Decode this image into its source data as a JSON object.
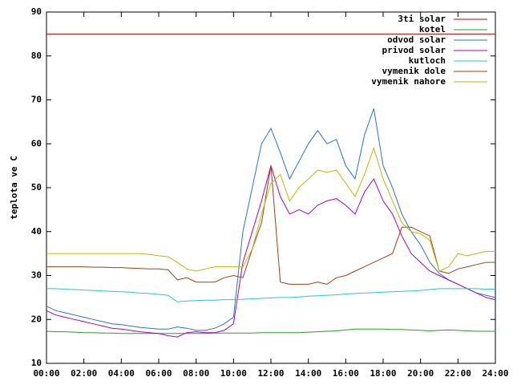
{
  "chart_data": {
    "type": "line",
    "ylabel": "teplota ve C",
    "x": [
      0,
      0.5,
      1,
      1.5,
      2,
      2.5,
      3,
      3.5,
      4,
      4.5,
      5,
      5.5,
      6,
      6.5,
      7,
      7.5,
      8,
      8.5,
      9,
      9.5,
      10,
      10.5,
      11,
      11.5,
      12,
      12.5,
      13,
      13.5,
      14,
      14.5,
      15,
      15.5,
      16,
      16.5,
      17,
      17.5,
      18,
      18.5,
      19,
      19.5,
      20,
      20.5,
      21,
      21.5,
      22,
      22.5,
      23,
      23.5,
      24
    ],
    "series": [
      {
        "name": "3ti solar",
        "color": "#cc0000",
        "values": [
          85,
          85,
          85,
          85,
          85,
          85,
          85,
          85,
          85,
          85,
          85,
          85,
          85,
          85,
          85,
          85,
          85,
          85,
          85,
          85,
          85,
          85,
          85,
          85,
          85,
          85,
          85,
          85,
          85,
          85,
          85,
          85,
          85,
          85,
          85,
          85,
          85,
          85,
          85,
          85,
          85,
          85,
          85,
          85,
          85,
          85,
          85,
          85,
          85
        ]
      },
      {
        "name": "kotel",
        "color": "#22a022",
        "values": [
          17.3,
          17.2,
          17.2,
          17.1,
          17,
          17,
          16.9,
          16.9,
          16.8,
          16.8,
          16.8,
          16.8,
          16.8,
          16.8,
          16.8,
          16.8,
          16.8,
          16.8,
          16.9,
          16.9,
          16.9,
          16.9,
          16.9,
          17,
          17,
          17,
          17,
          17,
          17.1,
          17.2,
          17.3,
          17.4,
          17.6,
          17.8,
          17.8,
          17.8,
          17.8,
          17.7,
          17.7,
          17.6,
          17.5,
          17.4,
          17.5,
          17.6,
          17.5,
          17.4,
          17.3,
          17.3,
          17.3
        ]
      },
      {
        "name": "odvod solar",
        "color": "#2277cc",
        "values": [
          23,
          22,
          21.5,
          21,
          20.5,
          20,
          19.5,
          19,
          18.8,
          18.5,
          18.2,
          18,
          17.8,
          17.8,
          18.3,
          18,
          17.5,
          17.5,
          18,
          19,
          20.5,
          40,
          50,
          60,
          63.5,
          58,
          52,
          56,
          60,
          63,
          60,
          61,
          55,
          52,
          62,
          68,
          55,
          50,
          44,
          40,
          37,
          33,
          30.5,
          29,
          28,
          27,
          26,
          25.5,
          25
        ]
      },
      {
        "name": "privod solar",
        "color": "#aa00cc",
        "values": [
          22,
          21,
          20.5,
          20,
          19.5,
          19,
          18.5,
          18,
          17.8,
          17.5,
          17.2,
          17,
          16.8,
          16.3,
          16,
          17,
          17.2,
          17,
          17,
          17.5,
          19,
          33,
          40,
          47,
          55,
          48,
          44,
          45,
          44,
          46,
          47,
          47.5,
          46,
          44,
          49,
          52,
          47,
          44,
          39,
          35,
          33,
          31,
          30,
          29,
          28,
          27,
          26,
          25,
          24.5
        ]
      },
      {
        "name": "kutloch",
        "color": "#22cccc",
        "values": [
          27,
          27,
          26.9,
          26.8,
          26.7,
          26.6,
          26.5,
          26.4,
          26.3,
          26.2,
          26,
          25.9,
          25.7,
          25.5,
          24,
          24.2,
          24.3,
          24.4,
          24.4,
          24.5,
          24.5,
          24.6,
          24.7,
          24.8,
          24.9,
          25,
          25,
          25.1,
          25.3,
          25.4,
          25.5,
          25.6,
          25.8,
          25.9,
          26,
          26.1,
          26.2,
          26.3,
          26.4,
          26.5,
          26.6,
          26.8,
          27,
          27,
          27,
          27,
          27,
          26.9,
          26.9
        ]
      },
      {
        "name": "vymenik dole",
        "color": "#a04010",
        "values": [
          32,
          32,
          32,
          32,
          32,
          31.9,
          31.9,
          31.8,
          31.8,
          31.7,
          31.6,
          31.5,
          31.5,
          31.3,
          29,
          29.5,
          28.5,
          28.5,
          28.5,
          29.5,
          30,
          29.5,
          36,
          42,
          55,
          28.5,
          28,
          28,
          28,
          28.5,
          28,
          29.5,
          30,
          31,
          32,
          33,
          34,
          35,
          41,
          41,
          40,
          39,
          31,
          30.5,
          31.5,
          32,
          32.5,
          33,
          33
        ]
      },
      {
        "name": "vymenik nahore",
        "color": "#c8b400",
        "values": [
          35,
          35,
          35,
          35,
          35,
          35,
          35,
          35,
          35,
          35,
          35,
          34.8,
          34.5,
          34.3,
          33,
          31.5,
          31,
          31.5,
          32,
          32,
          32,
          32,
          36,
          44,
          51,
          53,
          47,
          50,
          52,
          54,
          53.5,
          54,
          51,
          48,
          53,
          59,
          52,
          47,
          42,
          40,
          39.5,
          38,
          31,
          32,
          35,
          34.5,
          35,
          35.5,
          35.5
        ]
      }
    ],
    "xlim": [
      0,
      24
    ],
    "xticks": [
      {
        "value": 0,
        "label": "00:00"
      },
      {
        "value": 2,
        "label": "02:00"
      },
      {
        "value": 4,
        "label": "04:00"
      },
      {
        "value": 6,
        "label": "06:00"
      },
      {
        "value": 8,
        "label": "08:00"
      },
      {
        "value": 10,
        "label": "10:00"
      },
      {
        "value": 12,
        "label": "12:00"
      },
      {
        "value": 14,
        "label": "14:00"
      },
      {
        "value": 16,
        "label": "16:00"
      },
      {
        "value": 18,
        "label": "18:00"
      },
      {
        "value": 20,
        "label": "20:00"
      },
      {
        "value": 22,
        "label": "22:00"
      },
      {
        "value": 24,
        "label": "24:00"
      }
    ],
    "ylim": [
      10,
      90
    ],
    "yticks": [
      10,
      20,
      30,
      40,
      50,
      60,
      70,
      80,
      90
    ],
    "legend": "top-right"
  }
}
